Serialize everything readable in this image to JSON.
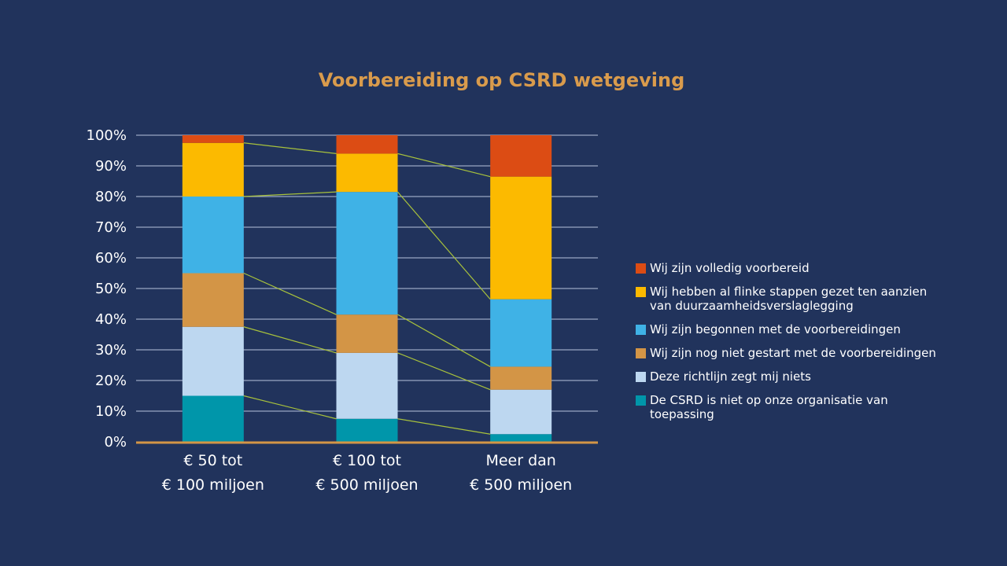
{
  "chart_data": {
    "type": "bar",
    "stacked": true,
    "title": "Voorbereiding op CSRD wetgeving",
    "xlabel": "",
    "ylabel": "",
    "ylim": [
      0,
      100
    ],
    "yticks": [
      "0%",
      "10%",
      "20%",
      "30%",
      "40%",
      "50%",
      "60%",
      "70%",
      "80%",
      "90%",
      "100%"
    ],
    "grid": true,
    "legend_position": "right",
    "series_lines": true,
    "categories": [
      [
        "€ 50 tot",
        "€ 100 miljoen"
      ],
      [
        "€ 100 tot",
        "€ 500 miljoen"
      ],
      [
        "Meer dan",
        "€ 500 miljoen"
      ]
    ],
    "series": [
      {
        "name": "De CSRD is niet op onze organisatie van toepassing",
        "color": "#0096aa",
        "values": [
          15,
          7.5,
          2.5
        ]
      },
      {
        "name": "Deze richtlijn zegt mij niets",
        "color": "#bdd7f0",
        "values": [
          22.5,
          21.5,
          14.5
        ]
      },
      {
        "name": "Wij zijn nog niet gestart met de voorbereidingen",
        "color": "#d39546",
        "values": [
          17.5,
          12.5,
          7.5
        ]
      },
      {
        "name": "Wij zijn begonnen met de voorbereidingen",
        "color": "#3fb2e6",
        "values": [
          25,
          40,
          22
        ]
      },
      {
        "name": "Wij hebben al flinke stappen gezet ten aanzien van duurzaamheidsverslaglegging",
        "color": "#fcba00",
        "values": [
          17.5,
          12.5,
          40
        ]
      },
      {
        "name": "Wij zijn volledig voorbereid",
        "color": "#dc4c14",
        "values": [
          2.5,
          6,
          13.5
        ]
      }
    ],
    "legend": [
      {
        "label": "Wij zijn volledig voorbereid",
        "color": "#dc4c14"
      },
      {
        "label": "Wij hebben al flinke stappen gezet ten aanzien van duurzaamheidsverslaglegging",
        "color": "#fcba00"
      },
      {
        "label": "Wij zijn begonnen met de voorbereidingen",
        "color": "#3fb2e6"
      },
      {
        "label": "Wij zijn nog niet gestart met de voorbereidingen",
        "color": "#d39546"
      },
      {
        "label": "Deze richtlijn zegt mij niets",
        "color": "#bdd7f0"
      },
      {
        "label": "De CSRD is niet op onze organisatie van toepassing",
        "color": "#0096aa"
      }
    ]
  }
}
